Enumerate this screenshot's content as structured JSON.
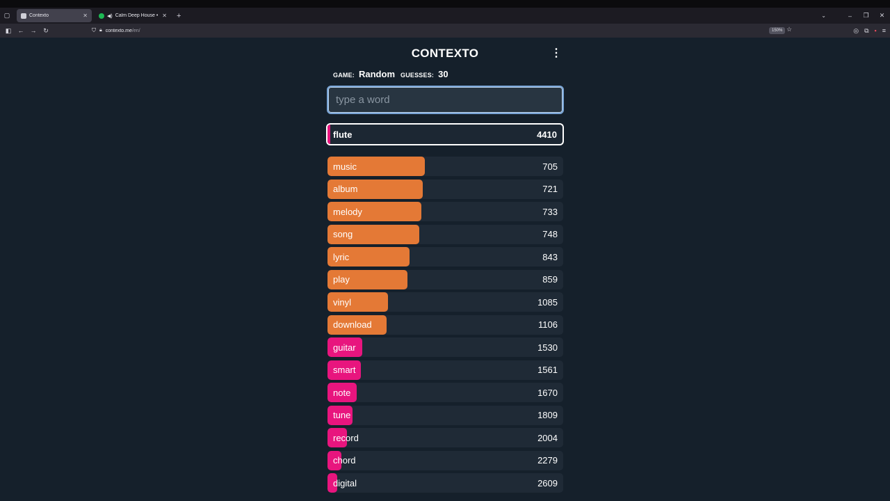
{
  "browser": {
    "tabs": [
      {
        "title": "Contexto",
        "active": true
      },
      {
        "title": "Calm Deep House • Royalty",
        "active": false
      }
    ],
    "url_host": "contexto.me",
    "url_path": "/en/",
    "zoom": "150%"
  },
  "game": {
    "title": "CONTEXTO",
    "game_label": "GAME:",
    "game_value": "Random",
    "guesses_label": "GUESSES:",
    "guesses_value": "30",
    "input_placeholder": "type a word",
    "last_guess": {
      "word": "flute",
      "score": "4410"
    },
    "guesses": [
      {
        "word": "music",
        "score": "705",
        "bar": 0.413,
        "color": "#e47936"
      },
      {
        "word": "album",
        "score": "721",
        "bar": 0.405,
        "color": "#e47936"
      },
      {
        "word": "melody",
        "score": "733",
        "bar": 0.398,
        "color": "#e47936"
      },
      {
        "word": "song",
        "score": "748",
        "bar": 0.39,
        "color": "#e47936"
      },
      {
        "word": "lyric",
        "score": "843",
        "bar": 0.348,
        "color": "#e47936"
      },
      {
        "word": "play",
        "score": "859",
        "bar": 0.34,
        "color": "#e47936"
      },
      {
        "word": "vinyl",
        "score": "1085",
        "bar": 0.257,
        "color": "#e47936"
      },
      {
        "word": "download",
        "score": "1106",
        "bar": 0.251,
        "color": "#e47936"
      },
      {
        "word": "guitar",
        "score": "1530",
        "bar": 0.148,
        "color": "#e8157e"
      },
      {
        "word": "smart",
        "score": "1561",
        "bar": 0.142,
        "color": "#e8157e"
      },
      {
        "word": "note",
        "score": "1670",
        "bar": 0.124,
        "color": "#e8157e"
      },
      {
        "word": "tune",
        "score": "1809",
        "bar": 0.106,
        "color": "#e8157e"
      },
      {
        "word": "record",
        "score": "2004",
        "bar": 0.083,
        "color": "#e8157e"
      },
      {
        "word": "chord",
        "score": "2279",
        "bar": 0.059,
        "color": "#e8157e"
      },
      {
        "word": "digital",
        "score": "2609",
        "bar": 0.041,
        "color": "#e8157e"
      }
    ]
  }
}
